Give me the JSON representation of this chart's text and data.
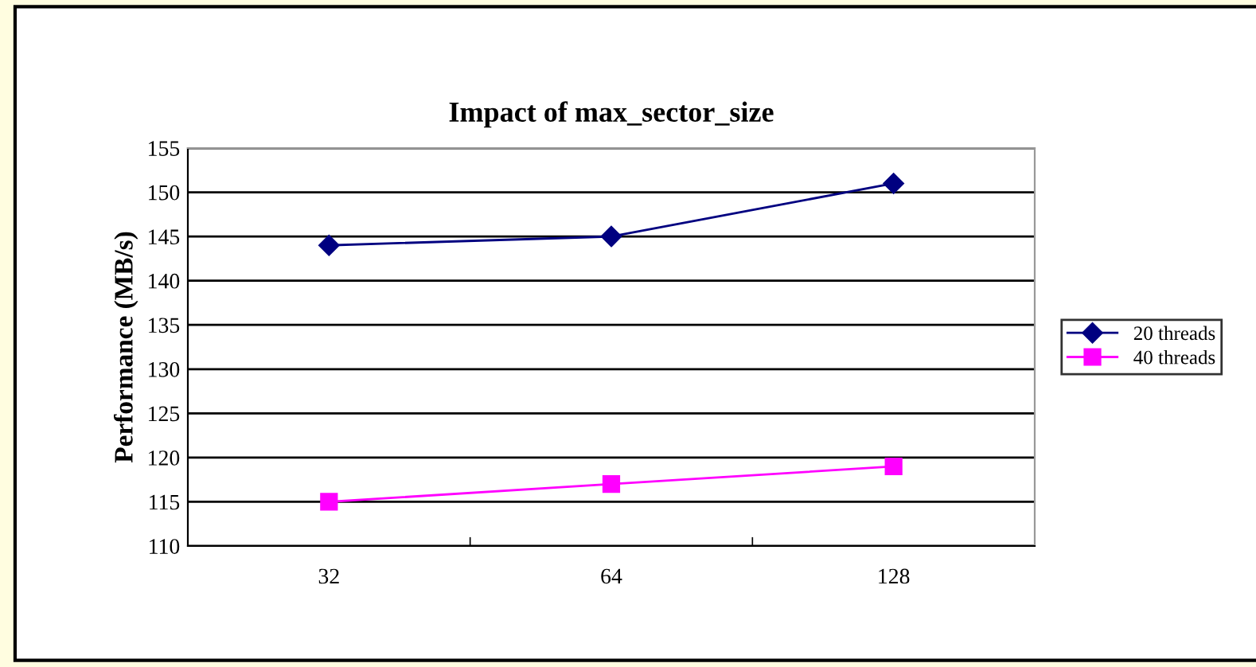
{
  "chart_data": {
    "type": "line",
    "title": "Impact of max_sector_size",
    "ylabel": "Performance (MB/s)",
    "categories": [
      "32",
      "64",
      "128"
    ],
    "series": [
      {
        "name": "20 threads",
        "color": "#000080",
        "values": [
          144,
          145,
          151
        ],
        "marker": "diamond"
      },
      {
        "name": "40 threads",
        "color": "#ff00ff",
        "values": [
          115,
          117,
          119
        ],
        "marker": "square"
      }
    ],
    "ylim": [
      110,
      155
    ],
    "yticks": [
      110,
      115,
      120,
      125,
      130,
      135,
      140,
      145,
      150,
      155
    ],
    "grid": "y",
    "legend": "right",
    "line_style": "solid"
  }
}
